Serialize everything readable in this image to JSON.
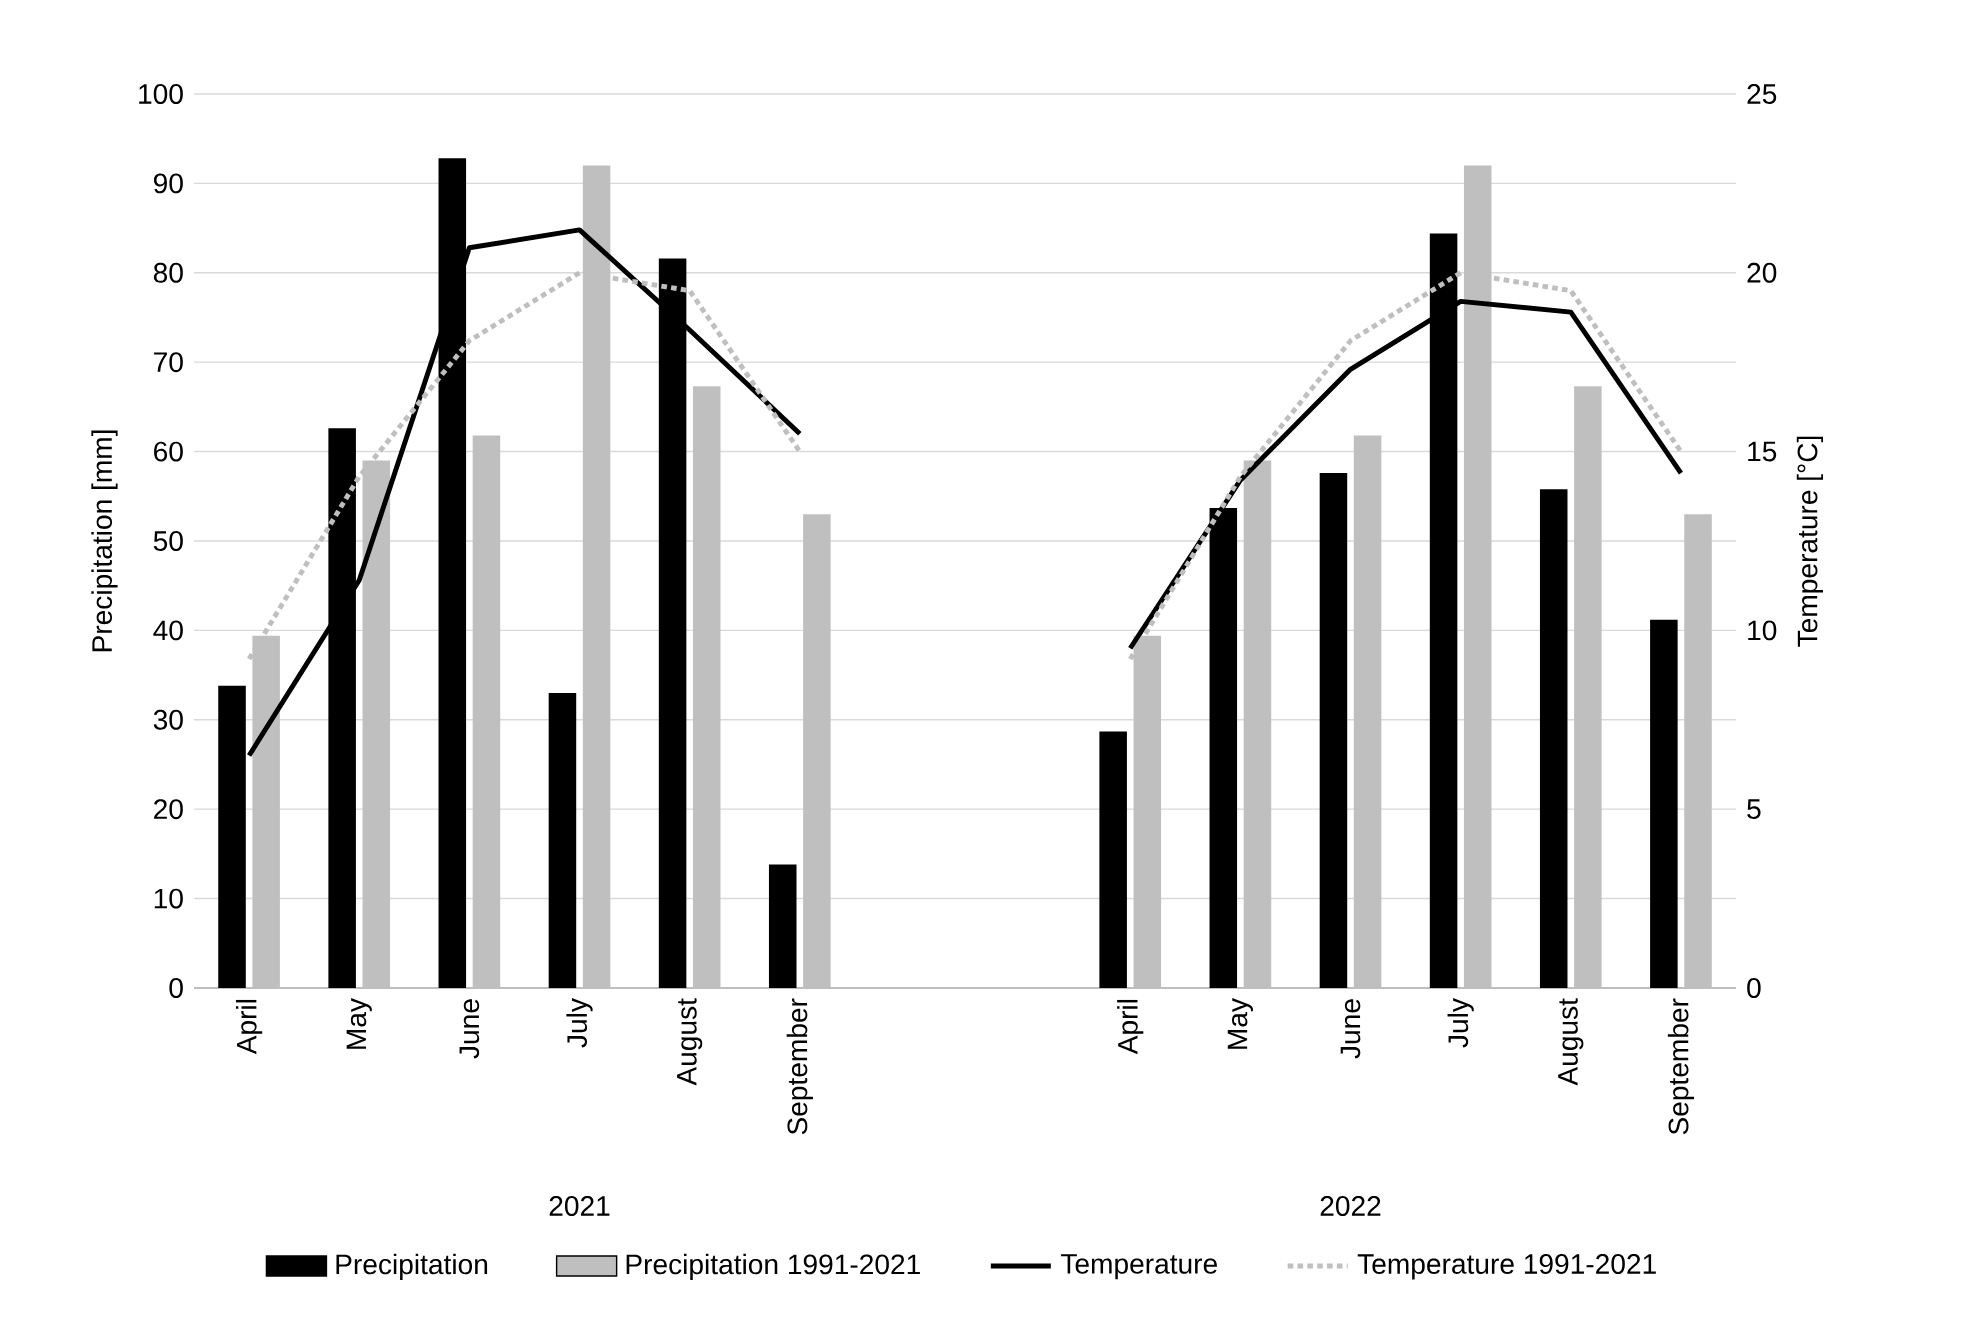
{
  "chart_data": {
    "type": "bar",
    "ylabel": "Precipitation [mm]",
    "y2label": "Temperature [°C]",
    "categories": [
      "April",
      "May",
      "June",
      "July",
      "August",
      "September",
      null,
      null,
      "April",
      "May",
      "June",
      "July",
      "August",
      "September"
    ],
    "annotations": [
      "2021",
      "2022"
    ],
    "series": [
      {
        "name": "Precipitation",
        "color": "#000000",
        "values": [
          33.8,
          62.6,
          92.8,
          33.0,
          81.6,
          13.8,
          null,
          null,
          28.7,
          53.7,
          57.6,
          84.4,
          55.8,
          41.2
        ]
      },
      {
        "name": "Precipitation 1991-2021",
        "color": "#bfbfbf",
        "values": [
          39.4,
          59.0,
          61.8,
          92.0,
          67.3,
          53.0,
          null,
          null,
          39.4,
          59.0,
          61.8,
          92.0,
          67.3,
          53.0
        ]
      },
      {
        "name": "Temperature",
        "type": "line",
        "axis": "y2",
        "color": "#000000",
        "line_style": "solid",
        "values": [
          6.5,
          11.4,
          20.7,
          21.2,
          18.4,
          15.5,
          null,
          null,
          9.5,
          14.2,
          17.3,
          19.2,
          18.9,
          14.4
        ]
      },
      {
        "name": "Temperature 1991-2021",
        "type": "line",
        "axis": "y2",
        "color": "#bfbfbf",
        "line_style": "dotted",
        "values": [
          9.2,
          14.3,
          18.1,
          20.0,
          19.5,
          15.0,
          null,
          null,
          9.2,
          14.3,
          18.1,
          20.0,
          19.5,
          15.0
        ]
      }
    ],
    "ylim": [
      0,
      100
    ],
    "yticks": [
      0,
      10,
      20,
      30,
      40,
      50,
      60,
      70,
      80,
      90,
      100
    ],
    "y2lim": [
      0,
      25
    ],
    "y2ticks": [
      0,
      5,
      10,
      15,
      20,
      25
    ],
    "grid": "y",
    "legend": "bottom"
  }
}
